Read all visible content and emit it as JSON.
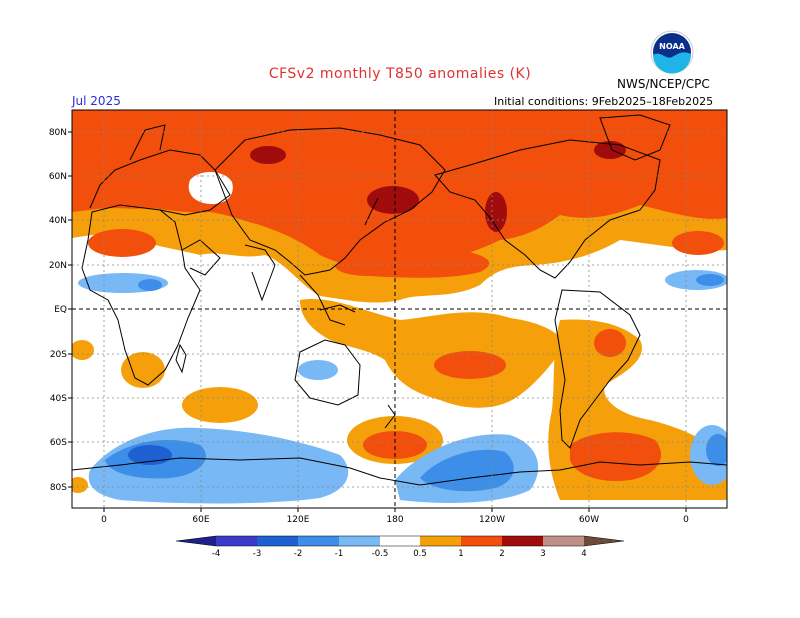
{
  "header": {
    "title": "CFSv2 monthly T850 anomalies (K)",
    "valid_month": "Jul 2025",
    "initial_conditions": "Initial conditions: 9Feb2025–18Feb2025",
    "agency": "NWS/NCEP/CPC",
    "logo_text": "NOAA"
  },
  "axes": {
    "lat_labels": [
      "80N",
      "60N",
      "40N",
      "20N",
      "EQ",
      "20S",
      "40S",
      "60S",
      "80S"
    ],
    "lon_labels": [
      "0",
      "60E",
      "120E",
      "180",
      "120W",
      "60W",
      "0"
    ]
  },
  "colorbar": {
    "labels": [
      "-4",
      "-3",
      "-2",
      "-1",
      "-0.5",
      "0.5",
      "1",
      "2",
      "3",
      "4"
    ],
    "colors": {
      "lt_minus4": "#20208c",
      "m4_m3": "#3a3ac8",
      "m3_m2": "#1e60d0",
      "m2_m1": "#3c8ee8",
      "m1_m05": "#78b8f4",
      "neutral": "#ffffff",
      "p05_p1": "#f5a00a",
      "p1_p2": "#f24e0c",
      "p2_p3": "#a00c0c",
      "p3_p4": "#c09088",
      "gt_p4": "#6e4a3a"
    }
  }
}
